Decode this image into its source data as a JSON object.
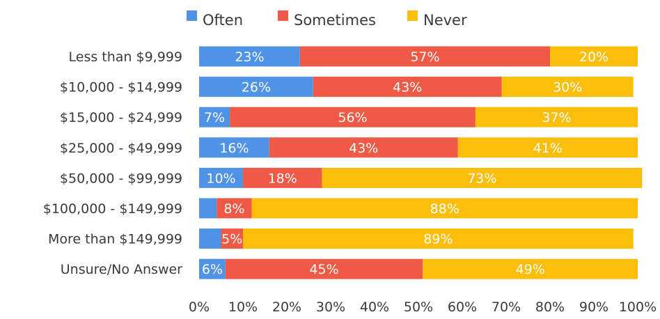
{
  "chart_data": {
    "type": "bar",
    "orientation": "horizontal",
    "stacked": true,
    "categories": [
      "Less than $9,999",
      "$10,000 - $14,999",
      "$15,000 - $24,999",
      "$25,000 - $49,999",
      "$50,000 - $99,999",
      "$100,000 - $149,999",
      "More than $149,999",
      "Unsure/No Answer"
    ],
    "series": [
      {
        "name": "Often",
        "color": "#4f93e6",
        "values": [
          23,
          26,
          7,
          16,
          10,
          4,
          5,
          6
        ],
        "labels": [
          "23%",
          "26%",
          "7%",
          "16%",
          "10%",
          "",
          "",
          "6%"
        ]
      },
      {
        "name": "Sometimes",
        "color": "#ee5a45",
        "values": [
          57,
          43,
          56,
          43,
          18,
          8,
          5,
          45
        ],
        "labels": [
          "57%",
          "43%",
          "56%",
          "43%",
          "18%",
          "8%",
          "5%",
          "45%"
        ]
      },
      {
        "name": "Never",
        "color": "#fbbe0a",
        "values": [
          20,
          30,
          37,
          41,
          73,
          88,
          89,
          49
        ],
        "labels": [
          "20%",
          "30%",
          "37%",
          "41%",
          "73%",
          "88%",
          "89%",
          "49%"
        ]
      }
    ],
    "xlim": [
      0,
      100
    ],
    "xticks": [
      "0%",
      "10%",
      "20%",
      "30%",
      "40%",
      "50%",
      "60%",
      "70%",
      "80%",
      "90%",
      "100%"
    ],
    "legend_position": "top",
    "grid": false
  }
}
